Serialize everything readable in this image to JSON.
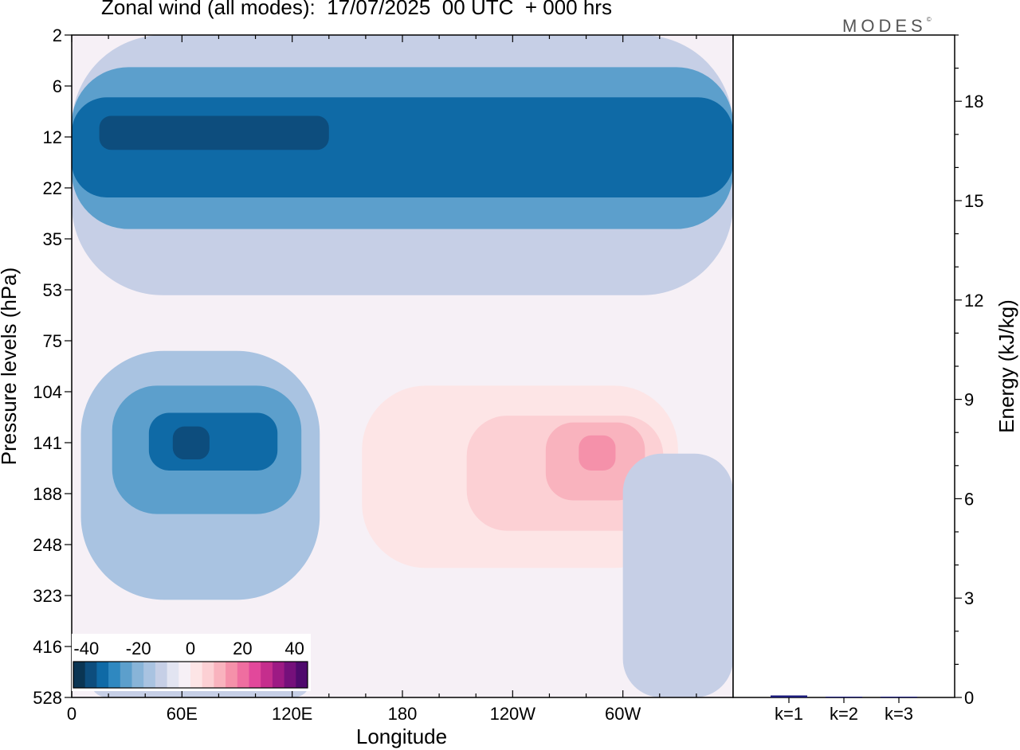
{
  "chart_data": [
    {
      "type": "heatmap",
      "title": "Zonal wind (all modes):  17/07/2025  00 UTC  + 000 hrs",
      "xlabel": "Longitude",
      "ylabel": "Pressure levels (hPa)",
      "x_ticks": [
        "0",
        "60E",
        "120E",
        "180",
        "120W",
        "60W"
      ],
      "y_ticks": [
        "2",
        "6",
        "12",
        "22",
        "35",
        "53",
        "75",
        "104",
        "141",
        "188",
        "248",
        "323",
        "416",
        "528"
      ],
      "colorbar": {
        "labels": [
          "-40",
          "-20",
          "0",
          "20",
          "40"
        ],
        "min": -45,
        "max": 45,
        "step": 5,
        "colors": [
          "#0a3553",
          "#0d4d7d",
          "#0f6aa6",
          "#2f88c0",
          "#5c9fcc",
          "#88b4d8",
          "#a9c3e1",
          "#c6cfe6",
          "#e2e4f1",
          "#f6f0f6",
          "#fde5e6",
          "#fcd0d4",
          "#f9b3be",
          "#f591aa",
          "#ef6ea0",
          "#e2489b",
          "#c52e8d",
          "#9d1a84",
          "#75107b",
          "#4f0a6d"
        ]
      },
      "regions": [
        {
          "z": -7,
          "lon": [
            0,
            360
          ],
          "p": [
            2,
            55
          ]
        },
        {
          "z": -22,
          "lon": [
            0,
            360
          ],
          "p": [
            4,
            32
          ]
        },
        {
          "z": -32,
          "lon": [
            0,
            360
          ],
          "p": [
            7,
            24
          ]
        },
        {
          "z": -37,
          "lon": [
            15,
            140
          ],
          "p": [
            9,
            14
          ]
        },
        {
          "z": -12,
          "lon": [
            5,
            135
          ],
          "p": [
            80,
            330
          ]
        },
        {
          "z": -22,
          "lon": [
            22,
            125
          ],
          "p": [
            100,
            210
          ]
        },
        {
          "z": -32,
          "lon": [
            42,
            112
          ],
          "p": [
            118,
            165
          ]
        },
        {
          "z": -37,
          "lon": [
            55,
            75
          ],
          "p": [
            128,
            155
          ]
        },
        {
          "z": 2,
          "lon": [
            0,
            360
          ],
          "p": [
            55,
            80
          ]
        },
        {
          "z": 4,
          "lon": [
            140,
            350
          ],
          "p": [
            80,
            350
          ]
        },
        {
          "z": 9,
          "lon": [
            158,
            330
          ],
          "p": [
            100,
            280
          ]
        },
        {
          "z": 14,
          "lon": [
            215,
            322
          ],
          "p": [
            120,
            230
          ]
        },
        {
          "z": 18,
          "lon": [
            258,
            312
          ],
          "p": [
            125,
            195
          ]
        },
        {
          "z": 22,
          "lon": [
            276,
            296
          ],
          "p": [
            135,
            165
          ]
        },
        {
          "z": -7,
          "lon": [
            300,
            360
          ],
          "p": [
            150,
            528
          ]
        },
        {
          "z": -7,
          "lon": [
            10,
            130
          ],
          "p": [
            420,
            528
          ]
        }
      ]
    },
    {
      "type": "bar",
      "categories": [
        "k=1",
        "k=2",
        "k=3"
      ],
      "values": [
        0.06,
        0.02,
        0.01
      ],
      "ylabel": "Energy (kJ/kg)",
      "ylim": [
        0,
        20
      ],
      "y_ticks": [
        0,
        3,
        6,
        9,
        12,
        15,
        18
      ],
      "bar_color": "#1a1a7a"
    }
  ],
  "logo": "MODES",
  "logo_mark": "©"
}
